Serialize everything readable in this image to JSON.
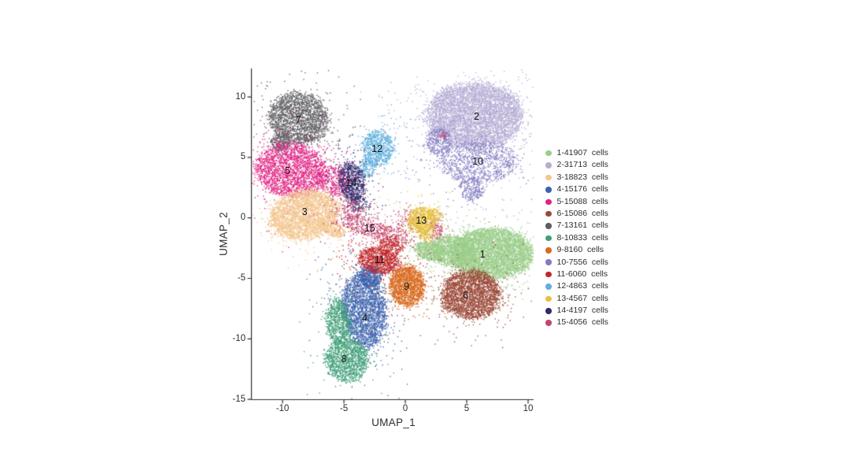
{
  "page": {
    "background": "#ffffff"
  },
  "chart_data": {
    "type": "scatter",
    "variant": "umap-cluster-plot",
    "title": "",
    "xlabel": "UMAP_1",
    "ylabel": "UMAP_2",
    "xlim": [
      -12.6,
      10.4
    ],
    "ylim": [
      -15,
      12.3
    ],
    "x_ticks": [
      -10,
      -5,
      0,
      5,
      10
    ],
    "y_ticks": [
      10,
      5,
      0,
      -5,
      -10,
      -15
    ],
    "grid": false,
    "legend_position": "right",
    "axis_color": "#2e2e2e",
    "draw_order": [
      7,
      5,
      3,
      2,
      10,
      12,
      14,
      15,
      1,
      6,
      4,
      8,
      11,
      9,
      13
    ],
    "clusters": [
      {
        "id": 1,
        "cells": 41907,
        "legend_text": "1-41907  cells",
        "color": "#9BCD8B",
        "label_pos": [
          6.3,
          -3.0
        ],
        "blobs": [
          [
            7.0,
            -2.9,
            3.35,
            2.05,
            0,
            0.72
          ],
          [
            3.8,
            -2.7,
            1.9,
            1.3,
            -8,
            0.2
          ],
          [
            2.0,
            -2.7,
            1.3,
            0.75,
            -12,
            0.08
          ]
        ],
        "noise": 0.1,
        "density": 1.0
      },
      {
        "id": 2,
        "cells": 31713,
        "legend_text": "2-31713  cells",
        "color": "#B7AED5",
        "label_pos": [
          5.8,
          8.4
        ],
        "blobs": [
          [
            5.6,
            8.5,
            3.85,
            2.75,
            0,
            1
          ]
        ],
        "noise": 0.1,
        "density": 1.1
      },
      {
        "id": 3,
        "cells": 18823,
        "legend_text": "3-18823  cells",
        "color": "#F3C68F",
        "label_pos": [
          -8.2,
          0.5
        ],
        "blobs": [
          [
            -8.3,
            0.3,
            2.85,
            2.0,
            12,
            0.9
          ],
          [
            -5.9,
            -0.9,
            1.0,
            0.6,
            -25,
            0.1
          ]
        ],
        "noise": 0.1,
        "density": 1.1
      },
      {
        "id": 4,
        "cells": 15176,
        "legend_text": "4-15176  cells",
        "color": "#3D63AE",
        "label_pos": [
          -3.3,
          -8.3
        ],
        "blobs": [
          [
            -3.4,
            -7.6,
            1.75,
            3.0,
            7,
            0.85
          ],
          [
            -2.9,
            -4.8,
            0.95,
            0.9,
            0,
            0.15
          ]
        ],
        "noise": 0.15,
        "density": 1.2
      },
      {
        "id": 5,
        "cells": 15088,
        "legend_text": "5-15088  cells",
        "color": "#E02285",
        "label_pos": [
          -9.6,
          3.9
        ],
        "blobs": [
          [
            -9.4,
            4.0,
            2.9,
            2.2,
            -8,
            0.85
          ],
          [
            -5.9,
            3.1,
            1.5,
            1.2,
            -20,
            0.15
          ]
        ],
        "noise": 0.16,
        "density": 1.15
      },
      {
        "id": 6,
        "cells": 15086,
        "legend_text": "6-15086  cells",
        "color": "#9C4A3A",
        "label_pos": [
          4.9,
          -6.4
        ],
        "blobs": [
          [
            5.3,
            -6.3,
            2.4,
            2.0,
            0,
            1
          ]
        ],
        "noise": 0.1,
        "density": 1.15
      },
      {
        "id": 7,
        "cells": 13161,
        "legend_text": "7-13161  cells",
        "color": "#5E5E62",
        "label_pos": [
          -8.7,
          8.1
        ],
        "blobs": [
          [
            -8.7,
            8.3,
            2.45,
            2.1,
            -20,
            0.9
          ],
          [
            -10.2,
            6.3,
            0.8,
            0.8,
            0,
            0.1
          ]
        ],
        "noise": 0.08,
        "density": 1.1
      },
      {
        "id": 8,
        "cells": 10833,
        "legend_text": "8-10833  cells",
        "color": "#3FA078",
        "label_pos": [
          -5.0,
          -11.7
        ],
        "blobs": [
          [
            -5.5,
            -8.6,
            1.0,
            2.0,
            8,
            0.35
          ],
          [
            -4.8,
            -11.7,
            1.75,
            1.8,
            0,
            0.65
          ]
        ],
        "noise": 0.07,
        "density": 1.15
      },
      {
        "id": 9,
        "cells": 8160,
        "legend_text": "9-8160  cells",
        "color": "#D96C20",
        "label_pos": [
          0.1,
          -5.7
        ],
        "blobs": [
          [
            0.1,
            -5.6,
            1.4,
            1.7,
            0,
            1
          ]
        ],
        "noise": 0.07,
        "density": 1.2
      },
      {
        "id": 10,
        "cells": 7556,
        "legend_text": "10-7556  cells",
        "color": "#837CC2",
        "label_pos": [
          5.9,
          4.7
        ],
        "blobs": [
          [
            5.9,
            4.7,
            3.3,
            1.7,
            0,
            0.62
          ],
          [
            2.7,
            6.4,
            1.0,
            1.1,
            0,
            0.2
          ],
          [
            5.3,
            2.4,
            1.0,
            0.95,
            0,
            0.18
          ]
        ],
        "noise": 0.13,
        "density": 1.3
      },
      {
        "id": 11,
        "cells": 6060,
        "legend_text": "11-6060  cells",
        "color": "#C2282C",
        "label_pos": [
          -2.1,
          -3.5
        ],
        "blobs": [
          [
            -2.2,
            -3.5,
            1.7,
            1.05,
            -12,
            0.8
          ],
          [
            -1.2,
            -2.3,
            1.0,
            0.8,
            0,
            0.2
          ]
        ],
        "noise": 0.22,
        "density": 1.3
      },
      {
        "id": 12,
        "cells": 4863,
        "legend_text": "12-4863  cells",
        "color": "#61AFDD",
        "label_pos": [
          -2.3,
          5.7
        ],
        "blobs": [
          [
            -2.3,
            5.8,
            1.25,
            1.5,
            0,
            0.8
          ],
          [
            -3.2,
            4.2,
            0.7,
            0.9,
            -30,
            0.2
          ]
        ],
        "noise": 0.13,
        "density": 1.2
      },
      {
        "id": 13,
        "cells": 4567,
        "legend_text": "13-4567  cells",
        "color": "#E7C13F",
        "label_pos": [
          1.3,
          -0.2
        ],
        "blobs": [
          [
            1.3,
            -0.15,
            1.1,
            1.1,
            0,
            0.75
          ],
          [
            1.7,
            -1.4,
            0.7,
            0.55,
            0,
            0.13
          ],
          [
            2.3,
            0.3,
            0.6,
            0.55,
            0,
            0.12
          ]
        ],
        "noise": 0.12,
        "density": 1.2
      },
      {
        "id": 14,
        "cells": 4197,
        "legend_text": "14-4197  cells",
        "color": "#33296B",
        "label_pos": [
          -4.4,
          2.9
        ],
        "blobs": [
          [
            -4.4,
            3.0,
            1.05,
            1.65,
            12,
            0.85
          ],
          [
            -4.0,
            1.3,
            0.85,
            0.8,
            0,
            0.15
          ]
        ],
        "noise": 0.2,
        "density": 1.3
      },
      {
        "id": 15,
        "cells": 4056,
        "legend_text": "15-4056  cells",
        "color": "#C44470",
        "label_pos": [
          -2.9,
          -0.85
        ],
        "blobs": [
          [
            -3.4,
            -0.65,
            1.9,
            0.8,
            -14,
            0.36
          ],
          [
            -1.2,
            -1.5,
            1.4,
            0.85,
            -10,
            0.24
          ],
          [
            2.4,
            -0.95,
            0.6,
            0.85,
            0,
            0.16
          ],
          [
            -4.6,
            0.7,
            1.2,
            0.9,
            0,
            0.12
          ],
          [
            0.3,
            -0.2,
            1.1,
            0.9,
            0,
            0.1
          ],
          [
            3.0,
            6.8,
            0.25,
            0.3,
            0,
            0.02
          ]
        ],
        "noise": 0.3,
        "density": 1.5
      }
    ]
  }
}
